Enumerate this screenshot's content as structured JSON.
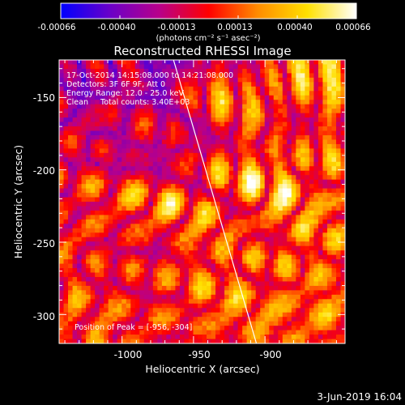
{
  "colorbar": {
    "tick_labels": [
      "-0.00066",
      "-0.00040",
      "-0.00013",
      "0.00013",
      "0.00040",
      "0.00066"
    ],
    "unit_label": "(photons cm⁻² s⁻¹ asec⁻²)",
    "colormap": [
      "#0000ff",
      "#6a00c8",
      "#b8008a",
      "#ff0000",
      "#ff8c00",
      "#ffe000",
      "#ffffff"
    ]
  },
  "image": {
    "title": "Reconstructed RHESSI Image",
    "annotations": [
      "17-Oct-2014 14:15:08.000 to 14:21:08.000",
      "Detectors: 3F 6F 9F, Att 0",
      "Energy Range: 12.0 - 25.0 keV",
      "Clean     Total counts: 3.40E+03"
    ],
    "peak_label": "Position of Peak = [-956, -304]",
    "footer_date": "3-Jun-2019 16:04"
  },
  "chart_data": {
    "type": "heatmap",
    "title": "Reconstructed RHESSI Image",
    "xlabel": "Heliocentric X (arcsec)",
    "ylabel": "Heliocentric Y (arcsec)",
    "xlim": [
      -1044,
      -844
    ],
    "ylim": [
      -320,
      -124
    ],
    "x_ticks": [
      -1000,
      -950,
      -900
    ],
    "x_tick_labels": [
      "-1000",
      "-950",
      "-900"
    ],
    "y_ticks": [
      -300,
      -250,
      -200,
      -150
    ],
    "y_tick_labels": [
      "-300",
      "-250",
      "-200",
      "-150"
    ],
    "value_range": [
      -0.00066,
      0.00066
    ],
    "peak": [
      -956,
      -304
    ],
    "limb_line": [
      [
        -964,
        -124
      ],
      [
        -906,
        -320
      ]
    ]
  }
}
